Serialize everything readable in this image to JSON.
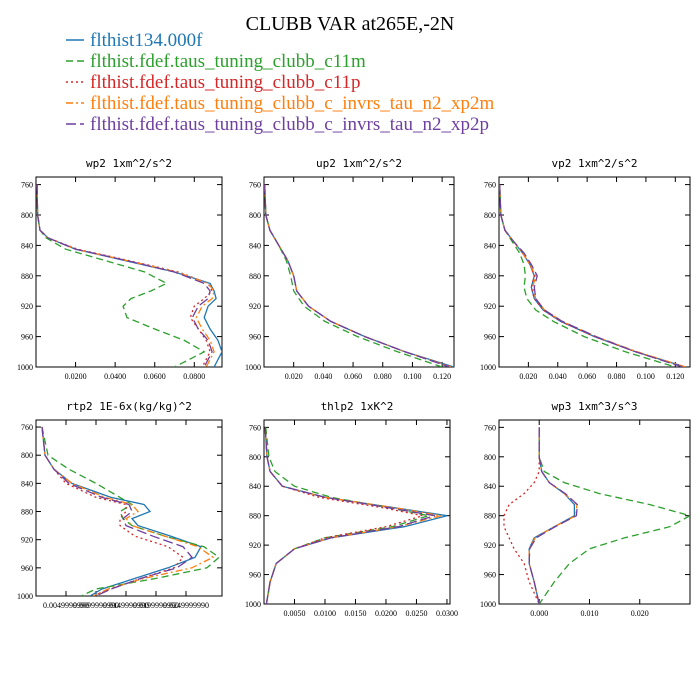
{
  "figure": {
    "title": "CLUBB VAR at265E,-2N",
    "legend": [
      {
        "label": "flthist134.000f",
        "color": "#1f77b4",
        "dash": "solid"
      },
      {
        "label": "flthist.fdef.taus_tuning_clubb_c11m",
        "color": "#2ca02c",
        "dash": "dashed"
      },
      {
        "label": "flthist.fdef.taus_tuning_clubb_c11p",
        "color": "#d62728",
        "dash": "dotted"
      },
      {
        "label": "flthist.fdef.taus_tuning_clubb_c_invrs_tau_n2_xp2m",
        "color": "#ff7f0e",
        "dash": "dashdot"
      },
      {
        "label": "flthist.fdef.taus_tuning_clubb_c_invrs_tau_n2_xp2p",
        "color": "#6f3fa0",
        "dash": "longdash"
      }
    ]
  },
  "chart_data": [
    {
      "type": "line",
      "title": "wp2  1xm^2/s^2",
      "xlim": [
        0,
        0.094
      ],
      "ylim": [
        1000,
        750
      ],
      "xticks": [
        0.02,
        0.04,
        0.06,
        0.08
      ],
      "xticklabels": [
        "0.0200",
        "0.0400",
        "0.0600",
        "0.0800"
      ],
      "yticks": [
        760,
        800,
        840,
        880,
        920,
        960,
        1000
      ],
      "yticklabels": [
        "760",
        "800",
        "840",
        "880",
        "920",
        "960",
        "1000"
      ],
      "y": [
        760,
        800,
        820,
        830,
        845,
        860,
        875,
        890,
        900,
        910,
        920,
        935,
        950,
        965,
        980,
        1000
      ],
      "series": [
        {
          "values": [
            0.0005,
            0.0008,
            0.002,
            0.006,
            0.02,
            0.045,
            0.07,
            0.088,
            0.09,
            0.091,
            0.087,
            0.085,
            0.088,
            0.092,
            0.094,
            0.09
          ]
        },
        {
          "values": [
            0.0005,
            0.0008,
            0.002,
            0.005,
            0.015,
            0.035,
            0.055,
            0.066,
            0.058,
            0.048,
            0.044,
            0.046,
            0.06,
            0.075,
            0.085,
            0.07
          ]
        },
        {
          "values": [
            0.0005,
            0.0008,
            0.002,
            0.006,
            0.021,
            0.047,
            0.072,
            0.087,
            0.089,
            0.085,
            0.08,
            0.078,
            0.082,
            0.086,
            0.088,
            0.084
          ]
        },
        {
          "values": [
            0.0005,
            0.0008,
            0.002,
            0.006,
            0.02,
            0.046,
            0.071,
            0.087,
            0.09,
            0.089,
            0.084,
            0.081,
            0.084,
            0.088,
            0.09,
            0.086
          ]
        },
        {
          "values": [
            0.0005,
            0.0008,
            0.002,
            0.006,
            0.02,
            0.046,
            0.07,
            0.085,
            0.088,
            0.087,
            0.082,
            0.079,
            0.082,
            0.087,
            0.089,
            0.085
          ]
        }
      ]
    },
    {
      "type": "line",
      "title": "up2  1xm^2/s^2",
      "xlim": [
        0,
        0.128
      ],
      "ylim": [
        1000,
        750
      ],
      "xticks": [
        0.02,
        0.04,
        0.06,
        0.08,
        0.1,
        0.12
      ],
      "xticklabels": [
        "0.020",
        "0.040",
        "0.060",
        "0.080",
        "0.100",
        "0.120"
      ],
      "yticks": [
        760,
        800,
        840,
        880,
        920,
        960,
        1000
      ],
      "yticklabels": [
        "760",
        "800",
        "840",
        "880",
        "920",
        "960",
        "1000"
      ],
      "y": [
        760,
        800,
        820,
        840,
        860,
        880,
        900,
        920,
        940,
        960,
        980,
        1000
      ],
      "series": [
        {
          "values": [
            0.0005,
            0.0012,
            0.004,
            0.01,
            0.016,
            0.02,
            0.022,
            0.03,
            0.045,
            0.068,
            0.095,
            0.128
          ]
        },
        {
          "values": [
            0.0005,
            0.0012,
            0.004,
            0.01,
            0.015,
            0.018,
            0.02,
            0.027,
            0.041,
            0.063,
            0.09,
            0.12
          ]
        },
        {
          "values": [
            0.0005,
            0.0012,
            0.004,
            0.01,
            0.016,
            0.02,
            0.022,
            0.03,
            0.045,
            0.068,
            0.095,
            0.127
          ]
        },
        {
          "values": [
            0.0005,
            0.0012,
            0.004,
            0.01,
            0.016,
            0.02,
            0.022,
            0.03,
            0.045,
            0.068,
            0.095,
            0.126
          ]
        },
        {
          "values": [
            0.0005,
            0.0012,
            0.004,
            0.01,
            0.016,
            0.02,
            0.022,
            0.03,
            0.045,
            0.068,
            0.095,
            0.125
          ]
        }
      ]
    },
    {
      "type": "line",
      "title": "vp2  1xm^2/s^2",
      "xlim": [
        0,
        0.13
      ],
      "ylim": [
        1000,
        750
      ],
      "xticks": [
        0.02,
        0.04,
        0.06,
        0.08,
        0.1,
        0.12
      ],
      "xticklabels": [
        "0.020",
        "0.040",
        "0.060",
        "0.080",
        "0.100",
        "0.120"
      ],
      "yticks": [
        760,
        800,
        840,
        880,
        920,
        960,
        1000
      ],
      "yticklabels": [
        "760",
        "800",
        "840",
        "880",
        "920",
        "960",
        "1000"
      ],
      "y": [
        760,
        800,
        820,
        835,
        850,
        865,
        880,
        895,
        910,
        925,
        940,
        960,
        980,
        1000
      ],
      "series": [
        {
          "values": [
            0.0005,
            0.0012,
            0.004,
            0.01,
            0.016,
            0.021,
            0.024,
            0.022,
            0.024,
            0.03,
            0.042,
            0.065,
            0.093,
            0.127
          ]
        },
        {
          "values": [
            0.0005,
            0.0012,
            0.004,
            0.009,
            0.014,
            0.017,
            0.018,
            0.017,
            0.019,
            0.025,
            0.037,
            0.058,
            0.086,
            0.12
          ]
        },
        {
          "values": [
            0.0005,
            0.0012,
            0.004,
            0.01,
            0.016,
            0.021,
            0.024,
            0.022,
            0.024,
            0.03,
            0.042,
            0.065,
            0.093,
            0.126
          ]
        },
        {
          "values": [
            0.0005,
            0.0012,
            0.004,
            0.01,
            0.016,
            0.021,
            0.025,
            0.023,
            0.025,
            0.031,
            0.043,
            0.066,
            0.094,
            0.127
          ]
        },
        {
          "values": [
            0.0005,
            0.0012,
            0.004,
            0.01,
            0.017,
            0.022,
            0.026,
            0.024,
            0.025,
            0.031,
            0.043,
            0.066,
            0.093,
            0.125
          ]
        }
      ]
    },
    {
      "type": "line",
      "title": "rtp2  1E-6x(kg/kg)^2",
      "xlim": [
        0,
        6.2
      ],
      "ylim": [
        1000,
        750
      ],
      "xticks": [
        1,
        2,
        3,
        4,
        5
      ],
      "xticklabels": [
        "0.00499999",
        "0.00999999",
        "0.0149999",
        "0.0199999",
        "0.0249999"
      ],
      "extra_tick_text": [
        "0.0049999990",
        "0.0099999990",
        "0.0149999990",
        "0.0199999990",
        "0.0249999990"
      ],
      "yticks": [
        760,
        800,
        840,
        880,
        920,
        960,
        1000
      ],
      "yticklabels": [
        "760",
        "800",
        "840",
        "880",
        "920",
        "960",
        "1000"
      ],
      "y": [
        760,
        800,
        820,
        840,
        860,
        870,
        880,
        890,
        900,
        915,
        930,
        945,
        960,
        975,
        990,
        1000
      ],
      "series": [
        {
          "values": [
            0.2,
            0.3,
            0.6,
            1.2,
            2.5,
            3.6,
            3.8,
            3.2,
            3.4,
            4.5,
            5.5,
            5.3,
            4.4,
            3.3,
            2.2,
            1.8
          ]
        },
        {
          "values": [
            0.2,
            0.4,
            1.1,
            2.0,
            2.8,
            3.2,
            2.8,
            2.9,
            3.2,
            4.3,
            5.6,
            6.1,
            5.7,
            4.0,
            2.0,
            1.5
          ]
        },
        {
          "values": [
            0.2,
            0.3,
            0.6,
            1.0,
            2.0,
            3.0,
            3.0,
            2.8,
            2.8,
            3.3,
            4.4,
            4.9,
            4.6,
            3.5,
            2.5,
            1.9
          ]
        },
        {
          "values": [
            0.2,
            0.3,
            0.6,
            1.2,
            2.3,
            3.2,
            3.4,
            3.0,
            3.2,
            4.3,
            5.4,
            5.9,
            5.2,
            3.6,
            2.4,
            1.9
          ]
        },
        {
          "values": [
            0.2,
            0.3,
            0.6,
            1.1,
            2.2,
            3.1,
            3.2,
            2.9,
            3.0,
            3.9,
            4.9,
            5.2,
            4.7,
            3.5,
            2.5,
            2.0
          ]
        }
      ]
    },
    {
      "type": "line",
      "title": "thlp2  1xK^2",
      "xlim": [
        0,
        0.0305
      ],
      "ylim": [
        1000,
        750
      ],
      "xticks": [
        0.005,
        0.01,
        0.015,
        0.02,
        0.025,
        0.03
      ],
      "xticklabels": [
        "0.0050",
        "0.0100",
        "0.0150",
        "0.0200",
        "0.0250",
        "0.0300"
      ],
      "yticks": [
        760,
        800,
        840,
        880,
        920,
        960,
        1000
      ],
      "yticklabels": [
        "760",
        "800",
        "840",
        "880",
        "920",
        "960",
        "1000"
      ],
      "y": [
        760,
        800,
        820,
        840,
        855,
        870,
        880,
        895,
        910,
        925,
        945,
        970,
        1000
      ],
      "series": [
        {
          "values": [
            0.0002,
            0.0005,
            0.001,
            0.003,
            0.01,
            0.022,
            0.03,
            0.023,
            0.011,
            0.005,
            0.002,
            0.001,
            0.0004
          ]
        },
        {
          "values": [
            0.0003,
            0.0008,
            0.0018,
            0.005,
            0.011,
            0.021,
            0.027,
            0.021,
            0.01,
            0.005,
            0.002,
            0.001,
            0.0004
          ]
        },
        {
          "values": [
            0.0002,
            0.0005,
            0.001,
            0.003,
            0.009,
            0.02,
            0.026,
            0.02,
            0.01,
            0.005,
            0.002,
            0.001,
            0.0004
          ]
        },
        {
          "values": [
            0.0002,
            0.0005,
            0.001,
            0.003,
            0.01,
            0.022,
            0.029,
            0.022,
            0.011,
            0.005,
            0.002,
            0.001,
            0.0004
          ]
        },
        {
          "values": [
            0.0002,
            0.0005,
            0.001,
            0.003,
            0.01,
            0.021,
            0.028,
            0.022,
            0.011,
            0.005,
            0.002,
            0.001,
            0.0004
          ]
        }
      ]
    },
    {
      "type": "line",
      "title": "wp3  1xm^3/s^3",
      "xlim": [
        -0.008,
        0.03
      ],
      "ylim": [
        1000,
        750
      ],
      "xticks": [
        0,
        0.01,
        0.02
      ],
      "xticklabels": [
        "0.000",
        "0.010",
        "0.020"
      ],
      "yticks": [
        760,
        800,
        840,
        880,
        920,
        960,
        1000
      ],
      "yticklabels": [
        "760",
        "800",
        "840",
        "880",
        "920",
        "960",
        "1000"
      ],
      "y": [
        760,
        800,
        820,
        835,
        850,
        865,
        880,
        895,
        910,
        925,
        945,
        970,
        1000
      ],
      "series": [
        {
          "values": [
            0,
            0,
            0.0005,
            0.002,
            0.005,
            0.007,
            0.007,
            0.003,
            -0.001,
            -0.002,
            -0.002,
            -0.001,
            0
          ]
        },
        {
          "values": [
            0,
            0,
            0.001,
            0.005,
            0.012,
            0.022,
            0.03,
            0.026,
            0.017,
            0.01,
            0.006,
            0.003,
            0
          ]
        },
        {
          "values": [
            0,
            0,
            0,
            -0.001,
            -0.003,
            -0.006,
            -0.007,
            -0.007,
            -0.006,
            -0.005,
            -0.003,
            -0.002,
            0
          ]
        },
        {
          "values": [
            0,
            0,
            0.0005,
            0.002,
            0.005,
            0.0075,
            0.0073,
            0.003,
            -0.0008,
            -0.002,
            -0.002,
            -0.001,
            0
          ]
        },
        {
          "values": [
            0,
            0,
            0.0005,
            0.002,
            0.0052,
            0.0076,
            0.0074,
            0.0032,
            -0.0006,
            -0.0019,
            -0.002,
            -0.001,
            0
          ]
        }
      ]
    }
  ]
}
